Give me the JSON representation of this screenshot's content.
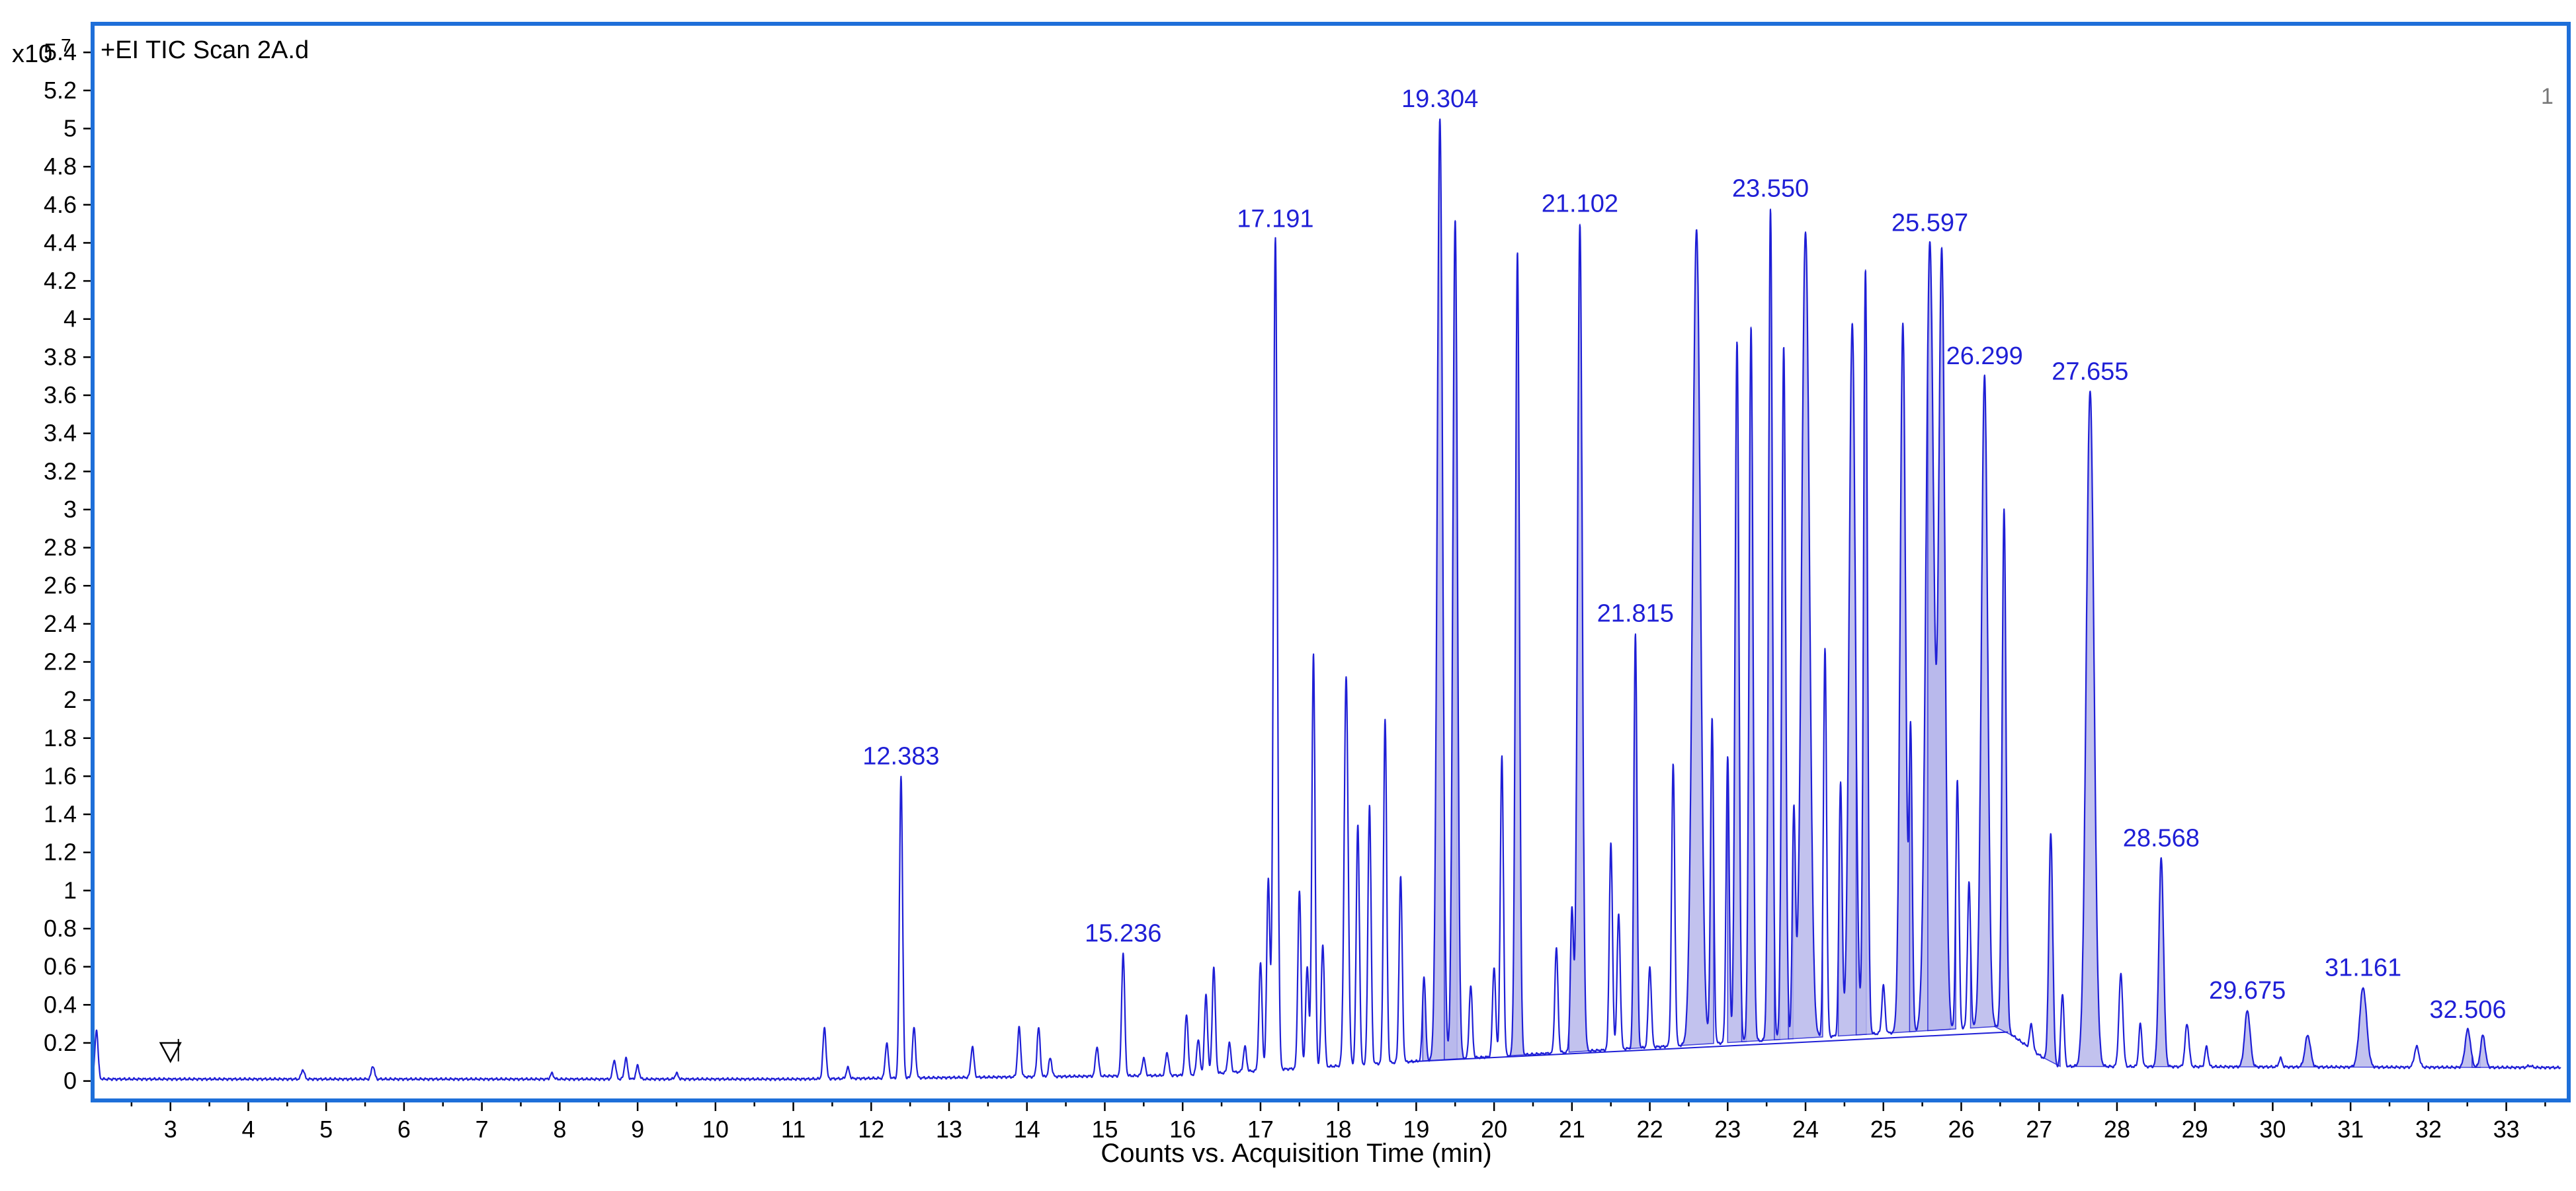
{
  "chart_data": {
    "type": "line",
    "title": "+EI TIC Scan 2A.d",
    "xlabel": "Counts vs. Acquisition Time (min)",
    "ylabel": "",
    "y_multiplier": "x10",
    "y_exponent": "7",
    "panel_number": "1",
    "xlim": [
      2.0,
      33.7
    ],
    "ylim": [
      -0.05,
      5.55
    ],
    "x_ticks": [
      3,
      4,
      5,
      6,
      7,
      8,
      9,
      10,
      11,
      12,
      13,
      14,
      15,
      16,
      17,
      18,
      19,
      20,
      21,
      22,
      23,
      24,
      25,
      26,
      27,
      28,
      29,
      30,
      31,
      32,
      33
    ],
    "y_ticks": [
      0,
      0.2,
      0.4,
      0.6,
      0.8,
      1,
      1.2,
      1.4,
      1.6,
      1.8,
      2,
      2.2,
      2.4,
      2.6,
      2.8,
      3,
      3.2,
      3.4,
      3.6,
      3.8,
      4,
      4.2,
      4.4,
      4.6,
      4.8,
      5,
      5.2,
      5.4
    ],
    "grid": false,
    "line_color": "#1f1fd6",
    "fill_color": "#b8b8ec",
    "frame_color": "#1e6fd9",
    "marker_x": 3.0,
    "labeled_peaks": [
      {
        "label": "12.383",
        "x": 12.383,
        "y": 1.6
      },
      {
        "label": "15.236",
        "x": 15.236,
        "y": 0.67
      },
      {
        "label": "17.191",
        "x": 17.191,
        "y": 4.42
      },
      {
        "label": "19.304",
        "x": 19.304,
        "y": 5.05
      },
      {
        "label": "21.102",
        "x": 21.102,
        "y": 4.5
      },
      {
        "label": "21.815",
        "x": 21.815,
        "y": 2.35
      },
      {
        "label": "23.550",
        "x": 23.55,
        "y": 4.58
      },
      {
        "label": "25.597",
        "x": 25.597,
        "y": 4.4
      },
      {
        "label": "26.299",
        "x": 26.299,
        "y": 3.7
      },
      {
        "label": "27.655",
        "x": 27.655,
        "y": 3.62
      },
      {
        "label": "28.568",
        "x": 28.568,
        "y": 1.17
      },
      {
        "label": "29.675",
        "x": 29.675,
        "y": 0.37
      },
      {
        "label": "31.161",
        "x": 31.161,
        "y": 0.49
      },
      {
        "label": "32.506",
        "x": 32.506,
        "y": 0.27
      }
    ],
    "peaks": [
      {
        "x": 2.05,
        "y": 0.27,
        "w": 0.02
      },
      {
        "x": 4.7,
        "y": 0.06,
        "w": 0.02
      },
      {
        "x": 5.6,
        "y": 0.08,
        "w": 0.02
      },
      {
        "x": 7.9,
        "y": 0.04,
        "w": 0.02
      },
      {
        "x": 8.7,
        "y": 0.11,
        "w": 0.02
      },
      {
        "x": 8.85,
        "y": 0.12,
        "w": 0.02
      },
      {
        "x": 9.0,
        "y": 0.08,
        "w": 0.02
      },
      {
        "x": 9.5,
        "y": 0.04,
        "w": 0.02
      },
      {
        "x": 11.4,
        "y": 0.28,
        "w": 0.02
      },
      {
        "x": 11.7,
        "y": 0.07,
        "w": 0.02
      },
      {
        "x": 12.2,
        "y": 0.2,
        "w": 0.02
      },
      {
        "x": 12.383,
        "y": 1.6,
        "w": 0.02
      },
      {
        "x": 12.55,
        "y": 0.28,
        "w": 0.02
      },
      {
        "x": 13.3,
        "y": 0.18,
        "w": 0.02
      },
      {
        "x": 13.9,
        "y": 0.28,
        "w": 0.02
      },
      {
        "x": 14.15,
        "y": 0.28,
        "w": 0.02
      },
      {
        "x": 14.3,
        "y": 0.12,
        "w": 0.02
      },
      {
        "x": 14.9,
        "y": 0.18,
        "w": 0.02
      },
      {
        "x": 15.236,
        "y": 0.67,
        "w": 0.02
      },
      {
        "x": 15.5,
        "y": 0.12,
        "w": 0.02
      },
      {
        "x": 15.8,
        "y": 0.15,
        "w": 0.02
      },
      {
        "x": 16.05,
        "y": 0.35,
        "w": 0.02
      },
      {
        "x": 16.2,
        "y": 0.22,
        "w": 0.02
      },
      {
        "x": 16.3,
        "y": 0.45,
        "w": 0.02
      },
      {
        "x": 16.4,
        "y": 0.6,
        "w": 0.02
      },
      {
        "x": 16.6,
        "y": 0.2,
        "w": 0.02
      },
      {
        "x": 16.8,
        "y": 0.18,
        "w": 0.02
      },
      {
        "x": 17.0,
        "y": 0.62,
        "w": 0.02
      },
      {
        "x": 17.1,
        "y": 1.06,
        "w": 0.02
      },
      {
        "x": 17.191,
        "y": 4.42,
        "w": 0.025
      },
      {
        "x": 17.5,
        "y": 1.0,
        "w": 0.02
      },
      {
        "x": 17.6,
        "y": 0.6,
        "w": 0.02
      },
      {
        "x": 17.68,
        "y": 2.25,
        "w": 0.02
      },
      {
        "x": 17.8,
        "y": 0.72,
        "w": 0.02
      },
      {
        "x": 18.1,
        "y": 2.12,
        "w": 0.025
      },
      {
        "x": 18.25,
        "y": 1.35,
        "w": 0.02
      },
      {
        "x": 18.4,
        "y": 1.45,
        "w": 0.02
      },
      {
        "x": 18.6,
        "y": 1.9,
        "w": 0.02
      },
      {
        "x": 18.8,
        "y": 1.07,
        "w": 0.02
      },
      {
        "x": 19.1,
        "y": 0.55,
        "w": 0.02
      },
      {
        "x": 19.304,
        "y": 5.05,
        "w": 0.035
      },
      {
        "x": 19.5,
        "y": 4.52,
        "w": 0.03
      },
      {
        "x": 19.7,
        "y": 0.5,
        "w": 0.02
      },
      {
        "x": 20.0,
        "y": 0.6,
        "w": 0.02
      },
      {
        "x": 20.1,
        "y": 1.7,
        "w": 0.02
      },
      {
        "x": 20.3,
        "y": 4.35,
        "w": 0.025
      },
      {
        "x": 20.8,
        "y": 0.7,
        "w": 0.02
      },
      {
        "x": 21.0,
        "y": 0.9,
        "w": 0.02
      },
      {
        "x": 21.102,
        "y": 4.5,
        "w": 0.03
      },
      {
        "x": 21.5,
        "y": 1.25,
        "w": 0.02
      },
      {
        "x": 21.6,
        "y": 0.88,
        "w": 0.02
      },
      {
        "x": 21.815,
        "y": 2.35,
        "w": 0.02
      },
      {
        "x": 22.0,
        "y": 0.6,
        "w": 0.02
      },
      {
        "x": 22.3,
        "y": 1.66,
        "w": 0.02
      },
      {
        "x": 22.6,
        "y": 4.47,
        "w": 0.05
      },
      {
        "x": 22.8,
        "y": 1.9,
        "w": 0.02
      },
      {
        "x": 23.0,
        "y": 1.7,
        "w": 0.02
      },
      {
        "x": 23.12,
        "y": 3.88,
        "w": 0.025
      },
      {
        "x": 23.3,
        "y": 3.96,
        "w": 0.025
      },
      {
        "x": 23.55,
        "y": 4.58,
        "w": 0.025
      },
      {
        "x": 23.72,
        "y": 3.85,
        "w": 0.025
      },
      {
        "x": 23.85,
        "y": 1.4,
        "w": 0.02
      },
      {
        "x": 24.0,
        "y": 4.46,
        "w": 0.05
      },
      {
        "x": 24.25,
        "y": 2.27,
        "w": 0.02
      },
      {
        "x": 24.45,
        "y": 1.57,
        "w": 0.02
      },
      {
        "x": 24.6,
        "y": 3.98,
        "w": 0.04
      },
      {
        "x": 24.77,
        "y": 4.26,
        "w": 0.025
      },
      {
        "x": 25.0,
        "y": 0.5,
        "w": 0.02
      },
      {
        "x": 25.25,
        "y": 3.98,
        "w": 0.035
      },
      {
        "x": 25.35,
        "y": 1.82,
        "w": 0.02
      },
      {
        "x": 25.597,
        "y": 4.4,
        "w": 0.05
      },
      {
        "x": 25.75,
        "y": 4.34,
        "w": 0.04
      },
      {
        "x": 25.95,
        "y": 1.58,
        "w": 0.02
      },
      {
        "x": 26.1,
        "y": 1.04,
        "w": 0.02
      },
      {
        "x": 26.299,
        "y": 3.7,
        "w": 0.04
      },
      {
        "x": 26.55,
        "y": 3.0,
        "w": 0.025
      },
      {
        "x": 26.9,
        "y": 0.3,
        "w": 0.02
      },
      {
        "x": 27.15,
        "y": 1.3,
        "w": 0.025
      },
      {
        "x": 27.3,
        "y": 0.46,
        "w": 0.02
      },
      {
        "x": 27.655,
        "y": 3.62,
        "w": 0.05
      },
      {
        "x": 28.05,
        "y": 0.56,
        "w": 0.025
      },
      {
        "x": 28.3,
        "y": 0.3,
        "w": 0.02
      },
      {
        "x": 28.568,
        "y": 1.17,
        "w": 0.03
      },
      {
        "x": 28.9,
        "y": 0.3,
        "w": 0.025
      },
      {
        "x": 29.15,
        "y": 0.18,
        "w": 0.02
      },
      {
        "x": 29.675,
        "y": 0.37,
        "w": 0.035
      },
      {
        "x": 30.1,
        "y": 0.12,
        "w": 0.02
      },
      {
        "x": 30.45,
        "y": 0.24,
        "w": 0.035
      },
      {
        "x": 31.161,
        "y": 0.49,
        "w": 0.045
      },
      {
        "x": 31.85,
        "y": 0.18,
        "w": 0.03
      },
      {
        "x": 32.506,
        "y": 0.27,
        "w": 0.035
      },
      {
        "x": 32.7,
        "y": 0.24,
        "w": 0.03
      },
      {
        "x": 33.3,
        "y": 0.08,
        "w": 0.03
      }
    ],
    "filled_peaks": [
      {
        "x": 19.304,
        "w": 0.22
      },
      {
        "x": 19.5,
        "w": 0.14
      },
      {
        "x": 20.3,
        "w": 0.12
      },
      {
        "x": 21.102,
        "w": 0.14
      },
      {
        "x": 21.815,
        "w": 0.1
      },
      {
        "x": 22.6,
        "w": 0.22
      },
      {
        "x": 23.12,
        "w": 0.12
      },
      {
        "x": 23.3,
        "w": 0.12
      },
      {
        "x": 23.55,
        "w": 0.12
      },
      {
        "x": 23.72,
        "w": 0.12
      },
      {
        "x": 24.0,
        "w": 0.22
      },
      {
        "x": 24.6,
        "w": 0.18
      },
      {
        "x": 24.77,
        "w": 0.12
      },
      {
        "x": 25.25,
        "w": 0.16
      },
      {
        "x": 25.597,
        "w": 0.26
      },
      {
        "x": 25.75,
        "w": 0.18
      },
      {
        "x": 26.299,
        "w": 0.18
      },
      {
        "x": 26.55,
        "w": 0.12
      },
      {
        "x": 27.15,
        "w": 0.12
      },
      {
        "x": 27.655,
        "w": 0.24
      },
      {
        "x": 28.568,
        "w": 0.16
      },
      {
        "x": 29.675,
        "w": 0.18
      },
      {
        "x": 30.45,
        "w": 0.16
      },
      {
        "x": 31.161,
        "w": 0.22
      },
      {
        "x": 32.506,
        "w": 0.16
      },
      {
        "x": 32.7,
        "w": 0.14
      }
    ]
  }
}
